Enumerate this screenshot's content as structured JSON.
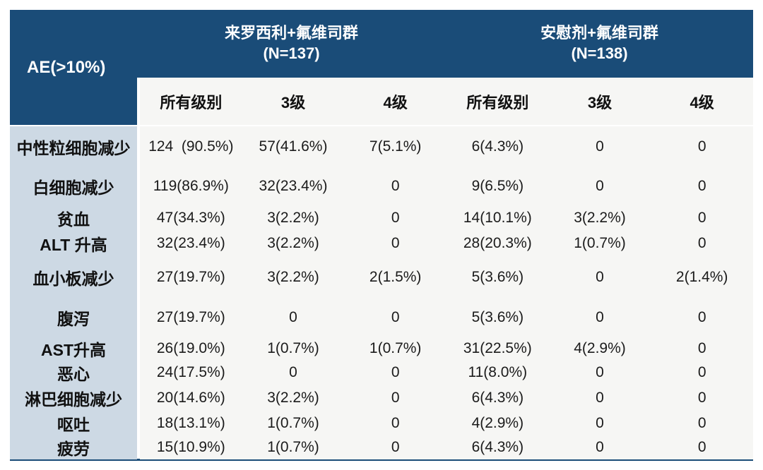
{
  "colors": {
    "header_bg": "#1a4c78",
    "label_column_bg": "#cdd9e4",
    "body_bg": "#f6f6f4",
    "bottom_border": "#1a4c78",
    "header_text": "#ffffff",
    "body_text": "#1b1b1b"
  },
  "chart_data": {
    "type": "table",
    "corner_label": "AE(>10%)",
    "column_groups": [
      {
        "label": "来罗西利+氟维司群",
        "n_label": "(N=137)",
        "columns": [
          "所有级别",
          "3级",
          "4级"
        ]
      },
      {
        "label": "安慰剂+氟维司群",
        "n_label": "(N=138)",
        "columns": [
          "所有级别",
          "3级",
          "4级"
        ]
      }
    ],
    "rows": [
      {
        "label": "中性粒细胞减少",
        "values": [
          "124  (90.5%)",
          "57(41.6%)",
          "7(5.1%)",
          "6(4.3%)",
          "0",
          "0"
        ]
      },
      {
        "label": "白细胞减少",
        "values": [
          "119(86.9%)",
          "32(23.4%)",
          "0",
          "9(6.5%)",
          "0",
          "0"
        ]
      },
      {
        "label": "贫血",
        "values": [
          "47(34.3%)",
          "3(2.2%)",
          "0",
          "14(10.1%)",
          "3(2.2%)",
          "0"
        ]
      },
      {
        "label": "ALT 升高",
        "values": [
          "32(23.4%)",
          "3(2.2%)",
          "0",
          "28(20.3%)",
          "1(0.7%)",
          "0"
        ]
      },
      {
        "label": "血小板减少",
        "values": [
          "27(19.7%)",
          "3(2.2%)",
          "2(1.5%)",
          "5(3.6%)",
          "0",
          "2(1.4%)"
        ]
      },
      {
        "label": "腹泻",
        "values": [
          "27(19.7%)",
          "0",
          "0",
          "5(3.6%)",
          "0",
          "0"
        ]
      },
      {
        "label": "AST升高",
        "values": [
          "26(19.0%)",
          "1(0.7%)",
          "1(0.7%)",
          "31(22.5%)",
          "4(2.9%)",
          "0"
        ]
      },
      {
        "label": "恶心",
        "values": [
          "24(17.5%)",
          "0",
          "0",
          "11(8.0%)",
          "0",
          "0"
        ]
      },
      {
        "label": "淋巴细胞减少",
        "values": [
          "20(14.6%)",
          "3(2.2%)",
          "0",
          "6(4.3%)",
          "0",
          "0"
        ]
      },
      {
        "label": "呕吐",
        "values": [
          "18(13.1%)",
          "1(0.7%)",
          "0",
          "4(2.9%)",
          "0",
          "0"
        ]
      },
      {
        "label": "疲劳",
        "values": [
          "15(10.9%)",
          "1(0.7%)",
          "0",
          "6(4.3%)",
          "0",
          "0"
        ]
      }
    ]
  }
}
